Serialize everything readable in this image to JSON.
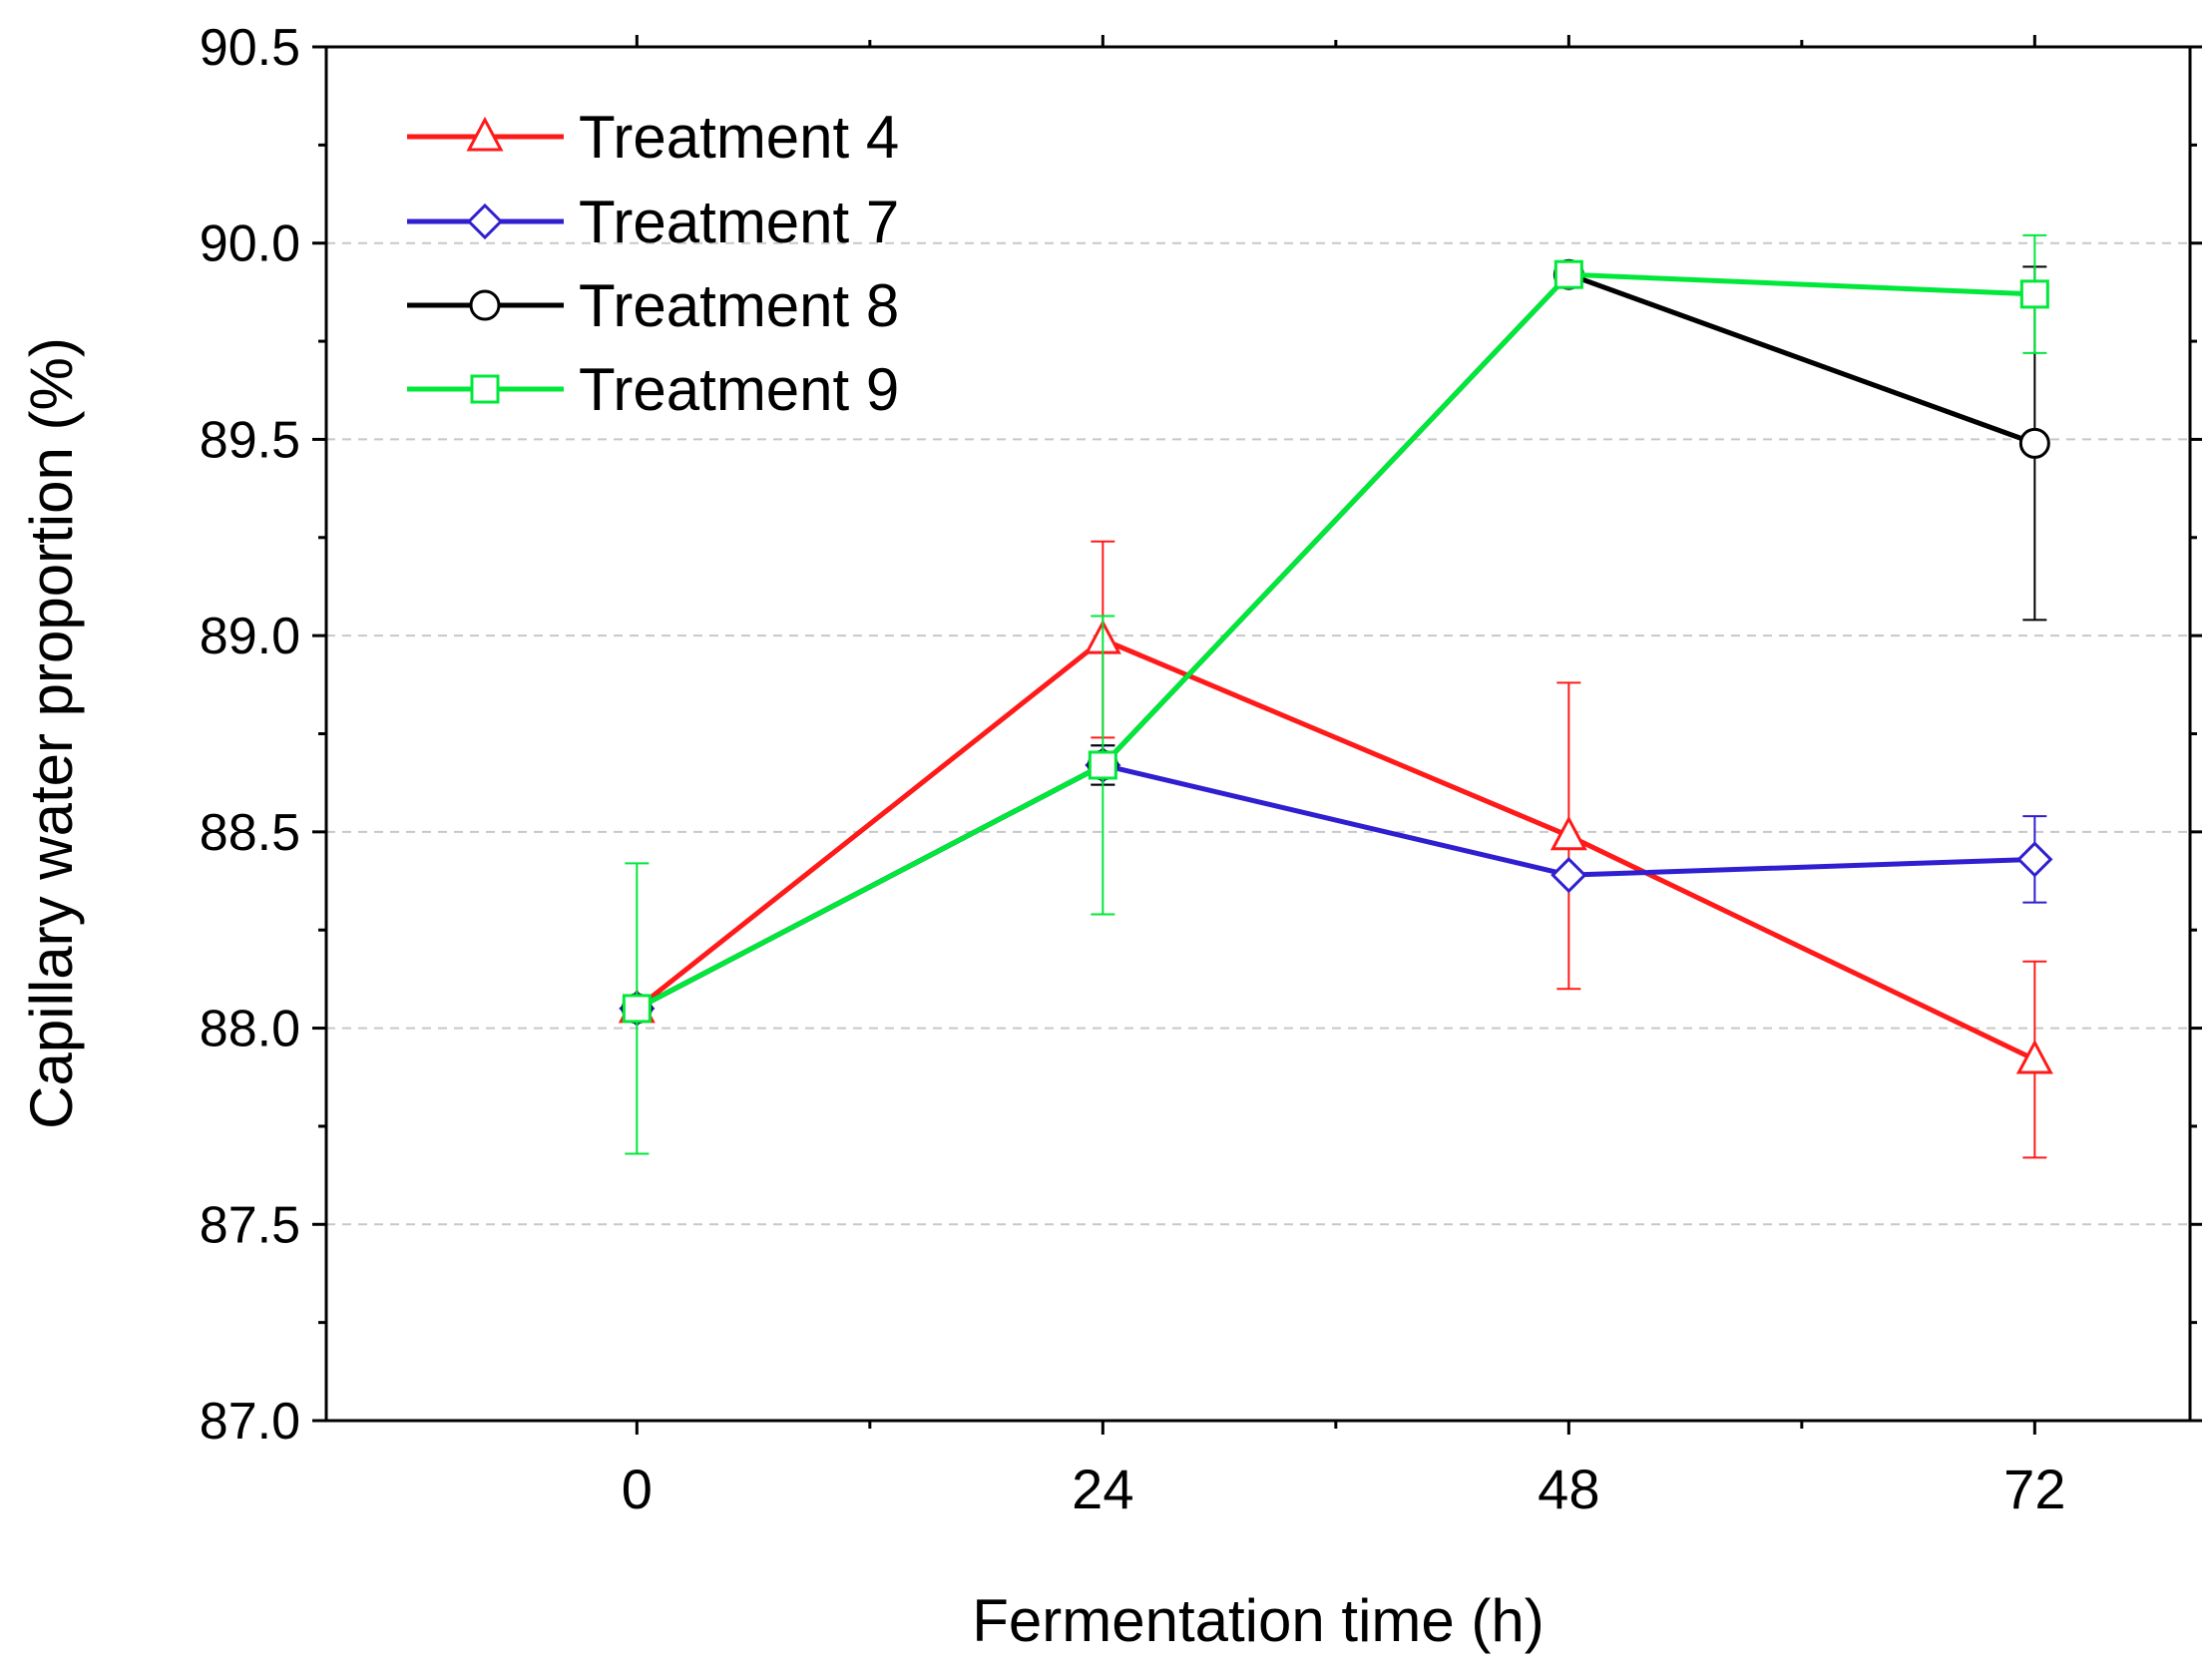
{
  "chart_data": {
    "type": "line",
    "title": "",
    "xlabel": "Fermentation time (h)",
    "ylabel": "Capillary water proportion (%)",
    "x": [
      0,
      24,
      48,
      72
    ],
    "x_ticks": [
      "0",
      "24",
      "48",
      "72"
    ],
    "xlim": [
      -16,
      80
    ],
    "ylim": [
      87.0,
      90.5
    ],
    "y_ticks": [
      "87.0",
      "87.5",
      "88.0",
      "88.5",
      "89.0",
      "89.5",
      "90.0",
      "90.5"
    ],
    "grid": "horizontal dashed",
    "legend_position": "top-left",
    "series": [
      {
        "name": "Treatment 4",
        "color": "#ff1a1a",
        "marker": "triangle",
        "values": [
          88.05,
          88.99,
          88.49,
          87.92
        ],
        "errors": [
          0.0,
          0.25,
          0.39,
          0.25
        ]
      },
      {
        "name": "Treatment 7",
        "color": "#2f1fd0",
        "marker": "diamond",
        "values": [
          88.05,
          88.67,
          88.39,
          88.43
        ],
        "errors": [
          0.0,
          0.05,
          0.0,
          0.11
        ]
      },
      {
        "name": "Treatment 8",
        "color": "#000000",
        "marker": "circle",
        "values": [
          88.05,
          88.67,
          89.92,
          89.49
        ],
        "errors": [
          0.0,
          0.05,
          0.0,
          0.45
        ]
      },
      {
        "name": "Treatment 9",
        "color": "#00e83a",
        "marker": "square",
        "values": [
          88.05,
          88.67,
          89.92,
          89.87
        ],
        "errors": [
          0.37,
          0.38,
          0.0,
          0.15
        ]
      }
    ]
  }
}
